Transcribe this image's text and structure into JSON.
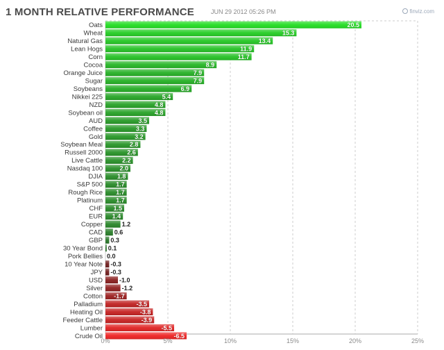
{
  "header": {
    "title": "1 MONTH RELATIVE PERFORMANCE",
    "timestamp": "JUN 29 2012 05:26 PM",
    "brand": "finviz.com"
  },
  "colors": {
    "positive_strong": "#22dd22",
    "positive_weak": "#2a6a2a",
    "negative_weak": "#5a1e1e",
    "negative_strong": "#ee2222",
    "grid": "#cccccc"
  },
  "chart_data": {
    "type": "bar",
    "orientation": "horizontal",
    "categories": [
      "Oats",
      "Wheat",
      "Natural Gas",
      "Lean Hogs",
      "Corn",
      "Cocoa",
      "Orange Juice",
      "Sugar",
      "Soybeans",
      "Nikkei 225",
      "NZD",
      "Soybean oil",
      "AUD",
      "Coffee",
      "Gold",
      "Soybean Meal",
      "Russell 2000",
      "Live Cattle",
      "Nasdaq 100",
      "DJIA",
      "S&P 500",
      "Rough Rice",
      "Platinum",
      "CHF",
      "EUR",
      "Copper",
      "CAD",
      "GBP",
      "30 Year Bond",
      "Pork Bellies",
      "10 Year Note",
      "JPY",
      "USD",
      "Silver",
      "Cotton",
      "Palladium",
      "Heating Oil",
      "Feeder Cattle",
      "Lumber",
      "Crude Oil"
    ],
    "values": [
      20.5,
      15.3,
      13.4,
      11.9,
      11.7,
      8.9,
      7.9,
      7.9,
      6.9,
      5.4,
      4.8,
      4.8,
      3.5,
      3.3,
      3.2,
      2.8,
      2.6,
      2.2,
      2.0,
      1.8,
      1.7,
      1.7,
      1.7,
      1.5,
      1.4,
      1.2,
      0.6,
      0.3,
      0.1,
      0.0,
      -0.3,
      -0.3,
      -1.0,
      -1.2,
      -1.7,
      -3.5,
      -3.8,
      -3.9,
      -5.5,
      -6.5
    ],
    "value_labels": [
      "20.5",
      "15.3",
      "13.4",
      "11.9",
      "11.7",
      "8.9",
      "7.9",
      "7.9",
      "6.9",
      "5.4",
      "4.8",
      "4.8",
      "3.5",
      "3.3",
      "3.2",
      "2.8",
      "2.6",
      "2.2",
      "2.0",
      "1.8",
      "1.7",
      "1.7",
      "1.7",
      "1.5",
      "1.4",
      "1.2",
      "0.6",
      "0.3",
      "0.1",
      "0.0",
      "-0.3",
      "-0.3",
      "-1.0",
      "-1.2",
      "-1.7",
      "-3.5",
      "-3.8",
      "-3.9",
      "-5.5",
      "-6.5"
    ],
    "xlim": [
      0,
      25
    ],
    "xticks": [
      0,
      5,
      10,
      15,
      20,
      25
    ],
    "xtick_labels": [
      "0%",
      "5%",
      "10%",
      "15%",
      "20%",
      "25%"
    ],
    "grid": true
  }
}
